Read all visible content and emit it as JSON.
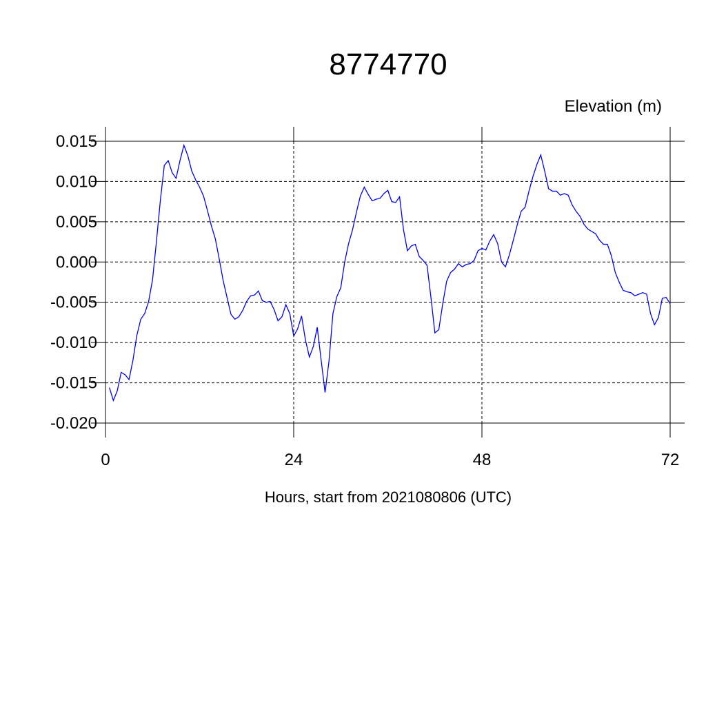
{
  "chart_data": {
    "type": "line",
    "title": "8774770",
    "y_axis_label": "Elevation (m)",
    "x_axis_label": "Hours, start from 2021080806 (UTC)",
    "x": [
      0.5,
      1,
      1.5,
      2,
      2.5,
      3,
      3.5,
      4,
      4.5,
      5,
      5.5,
      6,
      6.5,
      7,
      7.5,
      8,
      8.5,
      9,
      9.5,
      10,
      10.5,
      11,
      11.5,
      12,
      12.5,
      13,
      13.5,
      14,
      14.5,
      15,
      15.5,
      16,
      16.5,
      17,
      17.5,
      18,
      18.5,
      19,
      19.5,
      20,
      20.5,
      21,
      21.5,
      22,
      22.5,
      23,
      23.5,
      24,
      24.5,
      25,
      25.5,
      26,
      26.5,
      27,
      27.5,
      28,
      28.5,
      29,
      29.5,
      30,
      30.5,
      31,
      31.5,
      32,
      32.5,
      33,
      33.5,
      34,
      34.5,
      35,
      35.5,
      36,
      36.5,
      37,
      37.5,
      38,
      38.5,
      39,
      39.5,
      40,
      40.5,
      41,
      41.5,
      42,
      42.5,
      43,
      43.5,
      44,
      44.5,
      45,
      45.5,
      46,
      46.5,
      47,
      47.5,
      48,
      48.5,
      49,
      49.5,
      50,
      50.5,
      51,
      51.5,
      52,
      52.5,
      53,
      53.5,
      54,
      54.5,
      55,
      55.5,
      56,
      56.5,
      57,
      57.5,
      58,
      58.5,
      59,
      59.5,
      60,
      60.5,
      61,
      61.5,
      62,
      62.5,
      63,
      63.5,
      64,
      64.5,
      65,
      65.5,
      66,
      66.5,
      67,
      67.5,
      68,
      68.5,
      69,
      69.5,
      70,
      70.5,
      71,
      71.5,
      72
    ],
    "series": [
      {
        "color": "#0000ff",
        "values": [
          -0.0156,
          -0.0172,
          -0.016,
          -0.0137,
          -0.014,
          -0.0146,
          -0.0122,
          -0.0091,
          -0.0071,
          -0.0064,
          -0.0049,
          -0.0022,
          0.0026,
          0.0077,
          0.012,
          0.0126,
          0.0111,
          0.0104,
          0.0126,
          0.0145,
          0.0132,
          0.0113,
          0.0102,
          0.0093,
          0.0082,
          0.0064,
          0.0045,
          0.0029,
          0.0004,
          -0.0023,
          -0.0044,
          -0.0065,
          -0.0071,
          -0.0068,
          -0.006,
          -0.0049,
          -0.0042,
          -0.0041,
          -0.0036,
          -0.0048,
          -0.005,
          -0.0049,
          -0.0059,
          -0.0073,
          -0.0068,
          -0.0053,
          -0.0064,
          -0.0092,
          -0.0083,
          -0.0067,
          -0.0097,
          -0.0118,
          -0.0105,
          -0.0081,
          -0.0122,
          -0.0162,
          -0.0123,
          -0.0064,
          -0.0043,
          -0.0032,
          0.0,
          0.0023,
          0.004,
          0.0062,
          0.0082,
          0.0093,
          0.0084,
          0.0076,
          0.0078,
          0.0079,
          0.0085,
          0.0089,
          0.0075,
          0.0074,
          0.0081,
          0.004,
          0.0014,
          0.002,
          0.0022,
          0.0007,
          0.0002,
          -0.0004,
          -0.0044,
          -0.0088,
          -0.0084,
          -0.0052,
          -0.0024,
          -0.0013,
          -0.0009,
          -0.0002,
          -0.0006,
          -0.0003,
          -0.0002,
          0.0002,
          0.0014,
          0.0017,
          0.0015,
          0.0026,
          0.0034,
          0.0023,
          0.0,
          -0.0006,
          0.0009,
          0.0027,
          0.0046,
          0.0063,
          0.0068,
          0.0088,
          0.0106,
          0.0121,
          0.0133,
          0.0113,
          0.0091,
          0.0088,
          0.0088,
          0.0083,
          0.0085,
          0.0083,
          0.0071,
          0.0063,
          0.0057,
          0.0047,
          0.0041,
          0.0038,
          0.0035,
          0.0027,
          0.0022,
          0.0022,
          0.0008,
          -0.0013,
          -0.0025,
          -0.0035,
          -0.0037,
          -0.0038,
          -0.0042,
          -0.004,
          -0.0038,
          -0.004,
          -0.0064,
          -0.0078,
          -0.0069,
          -0.0045,
          -0.0044,
          -0.0052
        ]
      }
    ],
    "xlim": [
      0,
      72
    ],
    "xticks": [
      0,
      24,
      48,
      72
    ],
    "ylim": [
      -0.02,
      0.015
    ],
    "yticks": [
      {
        "value": -0.02,
        "label": "-0.020"
      },
      -0.015,
      {
        "value": -0.01,
        "label": "-0.010"
      },
      -0.005,
      {
        "value": 0,
        "label": "0.000"
      },
      0.005,
      {
        "value": 0.01,
        "label": "0.010"
      },
      0.015
    ],
    "grid": true
  }
}
